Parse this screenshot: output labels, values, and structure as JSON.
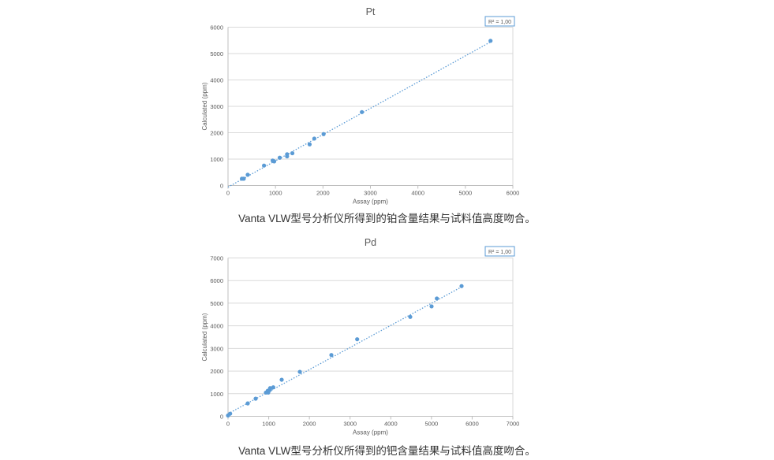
{
  "chart_data": [
    {
      "type": "scatter",
      "title": "Pt",
      "xlabel": "Assay (ppm)",
      "ylabel": "Calculated (ppm)",
      "xlim": [
        0,
        6000
      ],
      "ylim": [
        0,
        6000
      ],
      "xticks": [
        0,
        1000,
        2000,
        3000,
        4000,
        5000,
        6000
      ],
      "yticks": [
        0,
        1000,
        2000,
        3000,
        4000,
        5000,
        6000
      ],
      "grid": "horizontal",
      "annotation": "R² = 1,00",
      "caption": "Vanta VLW型号分析仪所得到的铂含量结果与试料值高度吻合。",
      "trendline": {
        "style": "dotted linear",
        "x": [
          0,
          5530
        ],
        "y": [
          -60,
          5440
        ]
      },
      "points": [
        [
          5530,
          5483
        ],
        [
          2820,
          2781
        ],
        [
          2013,
          1947
        ],
        [
          1818,
          1778
        ],
        [
          1719,
          1560
        ],
        [
          1355,
          1222
        ],
        [
          1244,
          1182
        ],
        [
          1244,
          1103
        ],
        [
          1089,
          1053
        ],
        [
          973,
          914
        ],
        [
          940,
          944
        ],
        [
          758,
          755
        ],
        [
          415,
          407
        ],
        [
          332,
          258
        ],
        [
          293,
          258
        ]
      ]
    },
    {
      "type": "scatter",
      "title": "Pd",
      "xlabel": "Assay (ppm)",
      "ylabel": "Calculated (ppm)",
      "xlim": [
        0,
        7000
      ],
      "ylim": [
        0,
        7000
      ],
      "xticks": [
        0,
        1000,
        2000,
        3000,
        4000,
        5000,
        6000,
        7000
      ],
      "yticks": [
        0,
        1000,
        2000,
        3000,
        4000,
        5000,
        6000,
        7000
      ],
      "grid": "horizontal",
      "annotation": "R² = 1,00",
      "caption": "Vanta VLW型号分析仪所得到的钯含量结果与试料值高度吻合。",
      "trendline": {
        "style": "dotted linear",
        "x": [
          0,
          5740
        ],
        "y": [
          110,
          5720
        ]
      },
      "points": [
        [
          5740,
          5756
        ],
        [
          5132,
          5209
        ],
        [
          5003,
          4860
        ],
        [
          4479,
          4395
        ],
        [
          3174,
          3407
        ],
        [
          2540,
          2709
        ],
        [
          1765,
          1965
        ],
        [
          1319,
          1616
        ],
        [
          1112,
          1279
        ],
        [
          1034,
          1244
        ],
        [
          1028,
          1163
        ],
        [
          976,
          1128
        ],
        [
          989,
          1047
        ],
        [
          931,
          1047
        ],
        [
          679,
          779
        ],
        [
          485,
          570
        ],
        [
          52,
          116
        ],
        [
          0,
          35
        ]
      ]
    }
  ],
  "colors": {
    "point": "#5b9bd5",
    "grid": "#d9d9d9",
    "text": "#595959",
    "annotation_border": "#5b9bd5"
  }
}
